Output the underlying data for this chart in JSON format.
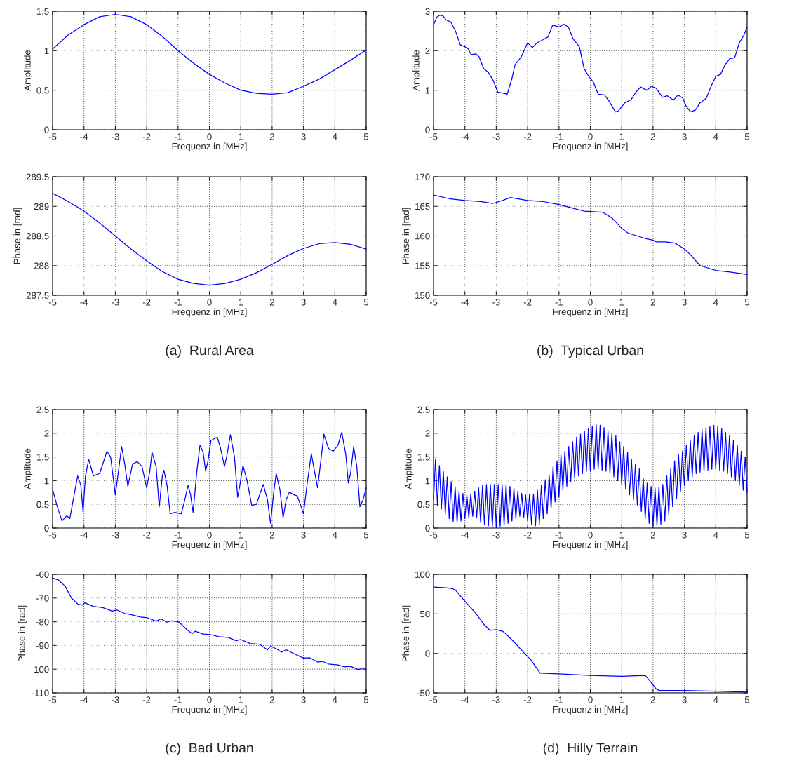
{
  "chart_data": [
    {
      "type": "line",
      "color": "#0000ff",
      "xlabel": "Frequenz in [MHz]",
      "ylabel": "Amplitude",
      "xlim": [
        -5,
        5
      ],
      "ylim": [
        0,
        1.5
      ],
      "xticks": [
        -5,
        -4,
        -3,
        -2,
        -1,
        0,
        1,
        2,
        3,
        4,
        5
      ],
      "yticks": [
        0,
        0.5,
        1,
        1.5
      ],
      "grid": true,
      "x": [
        -5,
        -4.5,
        -4,
        -3.5,
        -3,
        -2.5,
        -2,
        -1.5,
        -1,
        -0.5,
        0,
        0.5,
        1,
        1.5,
        2,
        2.5,
        3,
        3.5,
        4,
        4.5,
        5
      ],
      "values": [
        1.02,
        1.2,
        1.33,
        1.43,
        1.46,
        1.43,
        1.33,
        1.18,
        1.0,
        0.84,
        0.7,
        0.59,
        0.5,
        0.46,
        0.45,
        0.47,
        0.55,
        0.64,
        0.76,
        0.88,
        1.01
      ]
    },
    {
      "type": "line",
      "color": "#0000ff",
      "xlabel": "Frequenz in [MHz]",
      "ylabel": "Phase in [rad]",
      "xlim": [
        -5,
        5
      ],
      "ylim": [
        287.5,
        289.5
      ],
      "xticks": [
        -5,
        -4,
        -3,
        -2,
        -1,
        0,
        1,
        2,
        3,
        4,
        5
      ],
      "yticks": [
        287.5,
        288,
        288.5,
        289,
        289.5
      ],
      "grid": true,
      "annotations": [
        "(a)  Rural Area"
      ],
      "x": [
        -5,
        -4.5,
        -4,
        -3.5,
        -3,
        -2.5,
        -2,
        -1.5,
        -1,
        -0.5,
        0,
        0.5,
        1,
        1.5,
        2,
        2.5,
        3,
        3.5,
        4,
        4.5,
        5
      ],
      "values": [
        289.22,
        289.08,
        288.92,
        288.72,
        288.5,
        288.28,
        288.08,
        287.9,
        287.77,
        287.7,
        287.67,
        287.7,
        287.77,
        287.88,
        288.02,
        288.17,
        288.29,
        288.37,
        288.39,
        288.36,
        288.28
      ]
    },
    {
      "type": "line",
      "color": "#0000ff",
      "xlabel": "Frequenz in [MHz]",
      "ylabel": "Amplitude",
      "xlim": [
        -5,
        5
      ],
      "ylim": [
        0,
        3
      ],
      "xticks": [
        -5,
        -4,
        -3,
        -2,
        -1,
        0,
        1,
        2,
        3,
        4,
        5
      ],
      "yticks": [
        0,
        1,
        2,
        3
      ],
      "grid": true,
      "x": [
        -5,
        -4.9,
        -4.8,
        -4.7,
        -4.6,
        -4.45,
        -4.3,
        -4.15,
        -4,
        -3.9,
        -3.8,
        -3.65,
        -3.55,
        -3.4,
        -3.25,
        -3.1,
        -2.95,
        -2.8,
        -2.65,
        -2.5,
        -2.4,
        -2.2,
        -2.0,
        -1.85,
        -1.7,
        -1.5,
        -1.35,
        -1.2,
        -1.0,
        -0.85,
        -0.7,
        -0.55,
        -0.35,
        -0.2,
        -0.05,
        0.1,
        0.25,
        0.45,
        0.6,
        0.8,
        0.9,
        1.1,
        1.3,
        1.45,
        1.6,
        1.8,
        1.95,
        2.1,
        2.3,
        2.45,
        2.65,
        2.8,
        2.95,
        3.05,
        3.2,
        3.35,
        3.5,
        3.7,
        3.85,
        4.0,
        4.15,
        4.3,
        4.45,
        4.6,
        4.75,
        4.9,
        5
      ],
      "values": [
        2.65,
        2.85,
        2.9,
        2.88,
        2.78,
        2.73,
        2.5,
        2.15,
        2.1,
        2.05,
        1.9,
        1.92,
        1.85,
        1.55,
        1.45,
        1.25,
        0.95,
        0.93,
        0.9,
        1.3,
        1.65,
        1.85,
        2.2,
        2.08,
        2.2,
        2.28,
        2.35,
        2.65,
        2.6,
        2.67,
        2.6,
        2.3,
        2.1,
        1.55,
        1.35,
        1.2,
        0.9,
        0.88,
        0.72,
        0.45,
        0.48,
        0.68,
        0.76,
        0.95,
        1.08,
        1.0,
        1.1,
        1.05,
        0.82,
        0.86,
        0.75,
        0.88,
        0.8,
        0.6,
        0.45,
        0.5,
        0.68,
        0.8,
        1.1,
        1.35,
        1.4,
        1.65,
        1.8,
        1.82,
        2.2,
        2.4,
        2.6
      ]
    },
    {
      "type": "line",
      "color": "#0000ff",
      "xlabel": "Frequenz in [MHz]",
      "ylabel": "Phase in [rad]",
      "xlim": [
        -5,
        5
      ],
      "ylim": [
        150,
        170
      ],
      "xticks": [
        -5,
        -4,
        -3,
        -2,
        -1,
        0,
        1,
        2,
        3,
        4,
        5
      ],
      "yticks": [
        150,
        155,
        160,
        165,
        170
      ],
      "grid": true,
      "annotations": [
        "(b)  Typical Urban"
      ],
      "x": [
        -5,
        -4.5,
        -4,
        -3.5,
        -3.1,
        -2.8,
        -2.55,
        -2,
        -1.5,
        -1,
        -0.5,
        -0.2,
        0.4,
        0.7,
        1,
        1.2,
        1.5,
        1.8,
        2,
        2.1,
        2.4,
        2.7,
        3,
        3.2,
        3.5,
        4,
        4.5,
        5
      ],
      "values": [
        166.9,
        166.3,
        166.0,
        165.8,
        165.5,
        166.0,
        166.5,
        166.0,
        165.8,
        165.3,
        164.6,
        164.2,
        164.0,
        163.0,
        161.3,
        160.5,
        160.0,
        159.5,
        159.3,
        159.0,
        159.0,
        158.8,
        157.8,
        156.8,
        155.0,
        154.2,
        153.9,
        153.5
      ]
    },
    {
      "type": "line",
      "color": "#0000ff",
      "xlabel": "Frequenz in [MHz]",
      "ylabel": "Amplitude",
      "xlim": [
        -5,
        5
      ],
      "ylim": [
        0,
        2.5
      ],
      "xticks": [
        -5,
        -4,
        -3,
        -2,
        -1,
        0,
        1,
        2,
        3,
        4,
        5
      ],
      "yticks": [
        0,
        0.5,
        1,
        1.5,
        2,
        2.5
      ],
      "grid": true,
      "x": [
        -5,
        -4.85,
        -4.7,
        -4.55,
        -4.45,
        -4.3,
        -4.2,
        -4.1,
        -4.03,
        -3.95,
        -3.85,
        -3.7,
        -3.5,
        -3.35,
        -3.27,
        -3.15,
        -3.0,
        -2.9,
        -2.8,
        -2.7,
        -2.6,
        -2.45,
        -2.3,
        -2.15,
        -2.0,
        -1.9,
        -1.83,
        -1.7,
        -1.6,
        -1.5,
        -1.45,
        -1.35,
        -1.25,
        -1.1,
        -0.9,
        -0.8,
        -0.68,
        -0.6,
        -0.52,
        -0.4,
        -0.3,
        -0.2,
        -0.12,
        -0.05,
        0.05,
        0.25,
        0.35,
        0.48,
        0.55,
        0.67,
        0.8,
        0.9,
        0.97,
        1.07,
        1.2,
        1.35,
        1.5,
        1.6,
        1.72,
        1.85,
        1.95,
        2.05,
        2.13,
        2.25,
        2.35,
        2.45,
        2.55,
        2.7,
        2.8,
        2.9,
        3.0,
        3.1,
        3.25,
        3.35,
        3.45,
        3.55,
        3.65,
        3.8,
        3.95,
        4.1,
        4.22,
        4.35,
        4.43,
        4.5,
        4.6,
        4.7,
        4.8,
        4.9,
        5
      ],
      "values": [
        0.82,
        0.45,
        0.15,
        0.26,
        0.2,
        0.75,
        1.1,
        0.9,
        0.35,
        1.1,
        1.45,
        1.1,
        1.15,
        1.45,
        1.62,
        1.5,
        0.7,
        1.2,
        1.72,
        1.35,
        0.88,
        1.35,
        1.4,
        1.3,
        0.85,
        1.2,
        1.6,
        1.3,
        0.45,
        1.1,
        1.22,
        0.9,
        0.3,
        0.33,
        0.3,
        0.55,
        0.9,
        0.7,
        0.33,
        1.2,
        1.75,
        1.6,
        1.2,
        1.4,
        1.85,
        1.92,
        1.7,
        1.3,
        1.5,
        1.97,
        1.5,
        0.65,
        0.9,
        1.32,
        1.0,
        0.48,
        0.5,
        0.7,
        0.92,
        0.6,
        0.1,
        0.75,
        1.15,
        0.8,
        0.22,
        0.6,
        0.76,
        0.7,
        0.68,
        0.5,
        0.3,
        0.85,
        1.57,
        1.2,
        0.85,
        1.4,
        1.98,
        1.68,
        1.62,
        1.75,
        2.02,
        1.55,
        0.95,
        1.15,
        1.72,
        1.3,
        0.45,
        0.6,
        0.85
      ]
    },
    {
      "type": "line",
      "color": "#0000ff",
      "xlabel": "Frequenz in [MHz]",
      "ylabel": "Phase in [rad]",
      "xlim": [
        -5,
        5
      ],
      "ylim": [
        -110,
        -60
      ],
      "xticks": [
        -5,
        -4,
        -3,
        -2,
        -1,
        0,
        1,
        2,
        3,
        4,
        5
      ],
      "yticks": [
        -110,
        -100,
        -90,
        -80,
        -70,
        -60
      ],
      "grid": true,
      "annotations": [
        "(c)  Bad Urban"
      ],
      "x": [
        -5,
        -4.8,
        -4.6,
        -4.4,
        -4.2,
        -4.05,
        -3.97,
        -3.7,
        -3.4,
        -3.1,
        -2.95,
        -2.7,
        -2.5,
        -2.2,
        -2,
        -1.7,
        -1.55,
        -1.35,
        -1.2,
        -1,
        -0.9,
        -0.7,
        -0.55,
        -0.45,
        -0.2,
        0,
        0.3,
        0.6,
        0.85,
        1,
        1.3,
        1.6,
        1.85,
        1.95,
        2.15,
        2.3,
        2.45,
        2.7,
        3,
        3.2,
        3.45,
        3.6,
        3.8,
        4.1,
        4.3,
        4.5,
        4.75,
        4.9,
        5
      ],
      "values": [
        -61.5,
        -62.5,
        -65,
        -70,
        -72.5,
        -73,
        -72,
        -73.5,
        -74,
        -75.5,
        -75,
        -76.5,
        -77,
        -78,
        -78.2,
        -79.8,
        -78.8,
        -80.2,
        -79.6,
        -80,
        -81,
        -83.5,
        -85,
        -84,
        -85.2,
        -85.3,
        -86.3,
        -86.6,
        -88,
        -87.5,
        -89.2,
        -89.5,
        -91.8,
        -90.3,
        -91.5,
        -92.8,
        -91.8,
        -93.5,
        -95.3,
        -95.2,
        -97,
        -96.7,
        -97.8,
        -98.2,
        -99,
        -98.8,
        -100.2,
        -99.4,
        -100
      ]
    },
    {
      "type": "line",
      "color": "#0000ff",
      "xlabel": "Frequenz in [MHz]",
      "ylabel": "Amplitude",
      "xlim": [
        -5,
        5
      ],
      "ylim": [
        0,
        2.5
      ],
      "xticks": [
        -5,
        -4,
        -3,
        -2,
        -1,
        0,
        1,
        2,
        3,
        4,
        5
      ],
      "yticks": [
        0,
        0.5,
        1,
        1.5,
        2,
        2.5
      ],
      "grid": true,
      "x": [
        -5,
        -4.9375,
        -4.875,
        -4.8125,
        -4.75,
        -4.6875,
        -4.625,
        -4.5625,
        -4.5,
        -4.4375,
        -4.375,
        -4.3125,
        -4.25,
        -4.1875,
        -4.125,
        -4.0625,
        -4,
        -3.9375,
        -3.875,
        -3.8125,
        -3.75,
        -3.6875,
        -3.625,
        -3.5625,
        -3.5,
        -3.4375,
        -3.375,
        -3.3125,
        -3.25,
        -3.1875,
        -3.125,
        -3.0625,
        -3,
        -2.9375,
        -2.875,
        -2.8125,
        -2.75,
        -2.6875,
        -2.625,
        -2.5625,
        -2.5,
        -2.4375,
        -2.375,
        -2.3125,
        -2.25,
        -2.1875,
        -2.125,
        -2.0625,
        -2,
        -1.9375,
        -1.875,
        -1.8125,
        -1.75,
        -1.6875,
        -1.625,
        -1.5625,
        -1.5,
        -1.4375,
        -1.375,
        -1.3125,
        -1.25,
        -1.1875,
        -1.125,
        -1.0625,
        -1,
        -0.9375,
        -0.875,
        -0.8125,
        -0.75,
        -0.6875,
        -0.625,
        -0.5625,
        -0.5,
        -0.4375,
        -0.375,
        -0.3125,
        -0.25,
        -0.1875,
        -0.125,
        -0.0625,
        0,
        0.0625,
        0.125,
        0.1875,
        0.25,
        0.3125,
        0.375,
        0.4375,
        0.5,
        0.5625,
        0.625,
        0.6875,
        0.75,
        0.8125,
        0.875,
        0.9375,
        1,
        1.0625,
        1.125,
        1.1875,
        1.25,
        1.3125,
        1.375,
        1.4375,
        1.5,
        1.5625,
        1.625,
        1.6875,
        1.75,
        1.8125,
        1.875,
        1.9375,
        2,
        2.0625,
        2.125,
        2.1875,
        2.25,
        2.3125,
        2.375,
        2.4375,
        2.5,
        2.5625,
        2.625,
        2.6875,
        2.75,
        2.8125,
        2.875,
        2.9375,
        3,
        3.0625,
        3.125,
        3.1875,
        3.25,
        3.3125,
        3.375,
        3.4375,
        3.5,
        3.5625,
        3.625,
        3.6875,
        3.75,
        3.8125,
        3.875,
        3.9375,
        4,
        4.0625,
        4.125,
        4.1875,
        4.25,
        4.3125,
        4.375,
        4.4375,
        4.5,
        4.5625,
        4.625,
        4.6875,
        4.75,
        4.8125,
        4.875,
        4.9375,
        5
      ],
      "values": [
        0.6,
        1.45,
        0.48,
        1.32,
        0.4,
        1.2,
        0.3,
        1.08,
        0.2,
        0.98,
        0.13,
        0.88,
        0.12,
        0.78,
        0.15,
        0.73,
        0.2,
        0.7,
        0.22,
        0.72,
        0.25,
        0.78,
        0.22,
        0.85,
        0.12,
        0.9,
        0.07,
        0.92,
        0.05,
        0.92,
        0.03,
        0.92,
        0.03,
        0.92,
        0.04,
        0.92,
        0.06,
        0.92,
        0.1,
        0.88,
        0.15,
        0.84,
        0.2,
        0.78,
        0.25,
        0.73,
        0.22,
        0.7,
        0.15,
        0.72,
        0.08,
        0.72,
        0.05,
        0.8,
        0.08,
        0.9,
        0.2,
        1.02,
        0.3,
        1.12,
        0.42,
        1.3,
        0.55,
        1.42,
        0.65,
        1.55,
        0.8,
        1.62,
        0.88,
        1.72,
        0.98,
        1.82,
        1.05,
        1.92,
        1.1,
        1.98,
        1.15,
        2.05,
        1.2,
        2.1,
        1.22,
        2.15,
        1.24,
        2.18,
        1.24,
        2.17,
        1.22,
        2.12,
        1.2,
        2.05,
        1.15,
        2.0,
        1.08,
        1.95,
        1.0,
        1.82,
        0.92,
        1.72,
        0.82,
        1.6,
        0.7,
        1.45,
        0.6,
        1.35,
        0.48,
        1.25,
        0.35,
        1.05,
        0.2,
        0.95,
        0.1,
        0.88,
        0.05,
        0.85,
        0.05,
        0.88,
        0.08,
        0.92,
        0.15,
        1.1,
        0.28,
        1.25,
        0.45,
        1.42,
        0.62,
        1.55,
        0.78,
        1.62,
        0.9,
        1.75,
        1.0,
        1.85,
        1.08,
        1.95,
        1.15,
        2.02,
        1.18,
        2.08,
        1.2,
        2.12,
        1.22,
        2.15,
        1.24,
        2.17,
        1.24,
        2.15,
        1.22,
        2.1,
        1.2,
        2.02,
        1.15,
        1.95,
        1.08,
        1.85,
        1.0,
        1.75,
        0.9,
        1.62,
        0.8,
        1.5,
        0.75
      ]
    },
    {
      "type": "line",
      "color": "#0000ff",
      "xlabel": "Frequenz in [MHz]",
      "ylabel": "Phase in [rad]",
      "xlim": [
        -5,
        5
      ],
      "ylim": [
        -50,
        100
      ],
      "xticks": [
        -5,
        -4,
        -3,
        -2,
        -1,
        0,
        1,
        2,
        3,
        4,
        5
      ],
      "yticks": [
        -50,
        0,
        50,
        100
      ],
      "grid": true,
      "annotations": [
        "(d)  Hilly Terrain"
      ],
      "x": [
        -5,
        -4.6,
        -4.4,
        -4.3,
        -4,
        -3.7,
        -3.4,
        -3.2,
        -3,
        -2.8,
        -2.7,
        -2.4,
        -2.1,
        -1.9,
        -1.6,
        -1,
        0,
        1,
        1.75,
        1.9,
        2.1,
        2.2,
        3,
        4,
        5
      ],
      "values": [
        84,
        83,
        82,
        80,
        66,
        53,
        37,
        29,
        30,
        28,
        25,
        13,
        0,
        -8,
        -25,
        -26,
        -28,
        -29,
        -28,
        -35,
        -45,
        -47,
        -47,
        -48,
        -49
      ]
    }
  ]
}
